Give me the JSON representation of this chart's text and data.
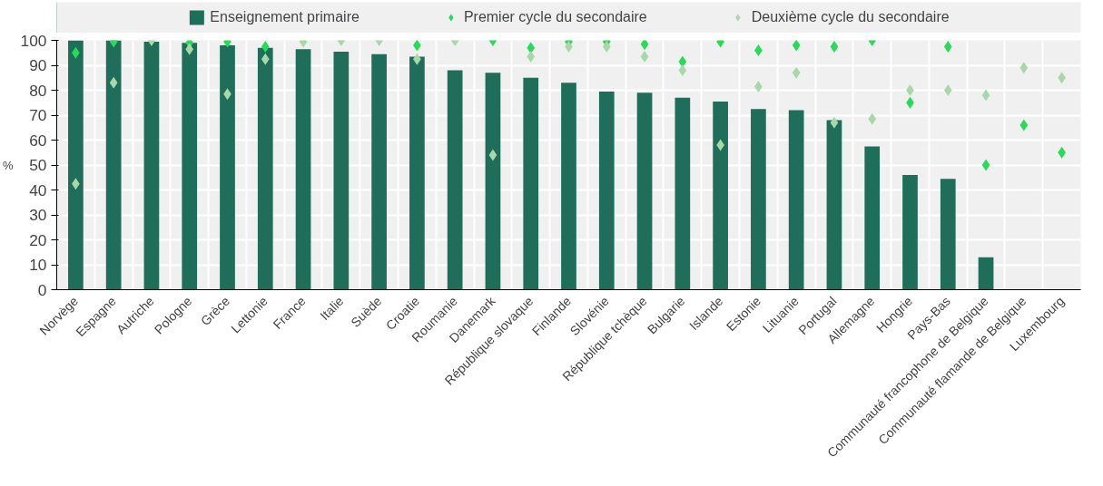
{
  "chart_data": {
    "type": "bar",
    "ylabel": "%",
    "categories": [
      "Norvège",
      "Espagne",
      "Autriche",
      "Pologne",
      "Grèce",
      "Lettonie",
      "France",
      "Italie",
      "Suède",
      "Croatie",
      "Roumanie",
      "Danemark",
      "République slovaque",
      "Finlande",
      "Slovénie",
      "République tchèque",
      "Bulgarie",
      "Islande",
      "Estonie",
      "Lituanie",
      "Portugal",
      "Allemagne",
      "Hongrie",
      "Pays-Bas",
      "Communauté francophone de Belgique",
      "Communauté flamande de Belgique",
      "Luxembourg"
    ],
    "series": [
      {
        "name": "Enseignement primaire",
        "color": "#1f6e5a",
        "values": [
          100,
          100,
          99.5,
          99,
          98,
          97,
          96.5,
          95.5,
          94.5,
          93.5,
          88,
          87,
          85,
          83,
          79.5,
          79,
          77,
          75.5,
          72.5,
          72,
          68,
          57.5,
          46,
          44.5,
          13,
          null,
          null
        ]
      },
      {
        "name": "Premier cycle du secondaire",
        "type": "scatter",
        "marker": "diamond",
        "color": "#22dd55",
        "values": [
          95,
          99.5,
          null,
          99,
          99.5,
          97.5,
          null,
          null,
          null,
          98,
          null,
          100,
          97,
          99.5,
          99.5,
          98.5,
          91.5,
          99.5,
          96,
          98,
          97.5,
          100,
          75,
          97.5,
          50,
          66,
          55
        ]
      },
      {
        "name": "Deuxième cycle du secondaire",
        "type": "scatter",
        "marker": "diamond",
        "color": "#a8d8a8",
        "values": [
          42.5,
          83,
          100,
          96.5,
          78.5,
          92.5,
          99.5,
          100,
          100,
          92.5,
          100,
          54,
          93.5,
          97.5,
          97.5,
          93.5,
          88,
          58,
          81.5,
          87,
          67,
          68.5,
          80,
          80,
          78,
          89,
          85
        ]
      }
    ],
    "ylim": [
      0,
      100
    ],
    "yticks": [
      0,
      10,
      20,
      30,
      40,
      50,
      60,
      70,
      80,
      90,
      100
    ],
    "grid": true,
    "legend": "top"
  }
}
